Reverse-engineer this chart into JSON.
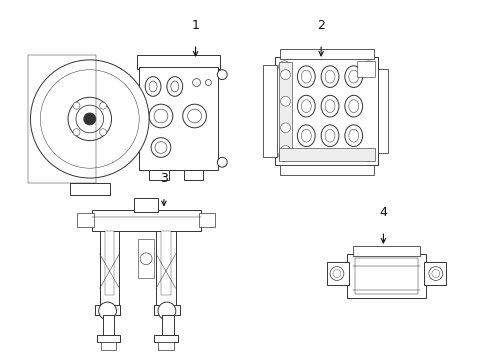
{
  "background_color": "#ffffff",
  "line_color": "#333333",
  "label_color": "#111111",
  "fig_width": 4.9,
  "fig_height": 3.6,
  "dpi": 100
}
